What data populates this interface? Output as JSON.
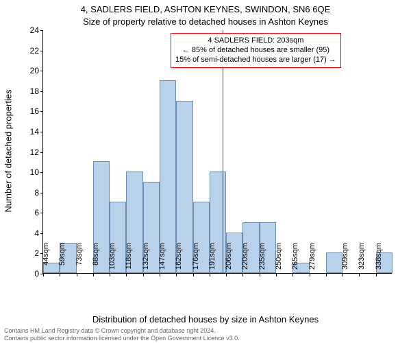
{
  "title_main": "4, SADLERS FIELD, ASHTON KEYNES, SWINDON, SN6 6QE",
  "title_sub": "Size of property relative to detached houses in Ashton Keynes",
  "y_axis_label": "Number of detached properties",
  "x_axis_label": "Distribution of detached houses by size in Ashton Keynes",
  "footer_line1": "Contains HM Land Registry data © Crown copyright and database right 2024.",
  "footer_line2": "Contains public sector information licensed under the Open Government Licence v3.0.",
  "annotation": {
    "line1": "4 SADLERS FIELD: 203sqm",
    "line2": "← 85% of detached houses are smaller (95)",
    "line3": "15% of semi-detached houses are larger (17) →"
  },
  "chart": {
    "type": "histogram",
    "bar_fill": "#b9d2ec",
    "bar_stroke": "#6b8fb3",
    "ref_line_color": "#ff0000",
    "ref_x_value": 203,
    "background_color": "#ffffff",
    "x_start": 44,
    "x_step": 14.7355,
    "bar_count": 21,
    "values": [
      1,
      3,
      0,
      11,
      7,
      10,
      9,
      19,
      17,
      7,
      10,
      4,
      5,
      5,
      0,
      1,
      0,
      2,
      0,
      0,
      2
    ],
    "ylim": [
      0,
      24
    ],
    "y_ticks": [
      0,
      2,
      4,
      6,
      8,
      10,
      12,
      14,
      16,
      18,
      20,
      22,
      24
    ],
    "x_tick_labels": [
      "44sqm",
      "59sqm",
      "73sqm",
      "88sqm",
      "103sqm",
      "118sqm",
      "132sqm",
      "147sqm",
      "162sqm",
      "176sqm",
      "191sqm",
      "206sqm",
      "220sqm",
      "235sqm",
      "250sqm",
      "265sqm",
      "279sqm",
      "",
      "309sqm",
      "323sqm",
      "338sqm"
    ],
    "title_fontsize": 13,
    "axis_fontsize": 13,
    "tick_fontsize": 11,
    "annotation_fontsize": 11,
    "footer_fontsize": 9
  }
}
